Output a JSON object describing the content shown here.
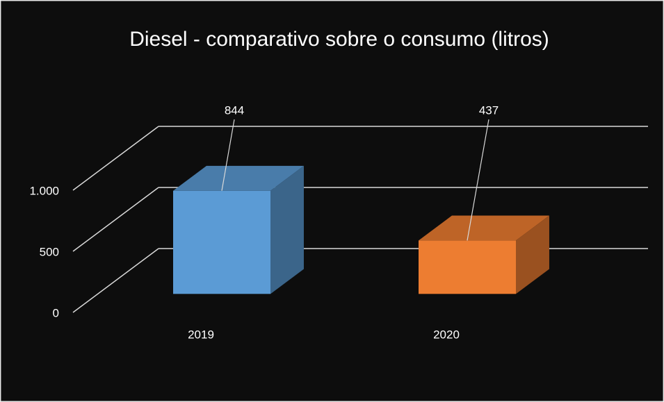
{
  "chart_data": {
    "type": "bar3d",
    "title": "Diesel - comparativo sobre o consumo (litros)",
    "categories": [
      "2019",
      "2020"
    ],
    "series": [
      {
        "colors": [
          "#5b9bd5",
          "#ed7d31"
        ],
        "values": [
          844,
          437
        ]
      }
    ],
    "ylim": [
      0,
      1000
    ],
    "yticks": [
      0,
      500,
      {
        "value": 1000,
        "label": "1.000"
      }
    ],
    "grid": true
  }
}
